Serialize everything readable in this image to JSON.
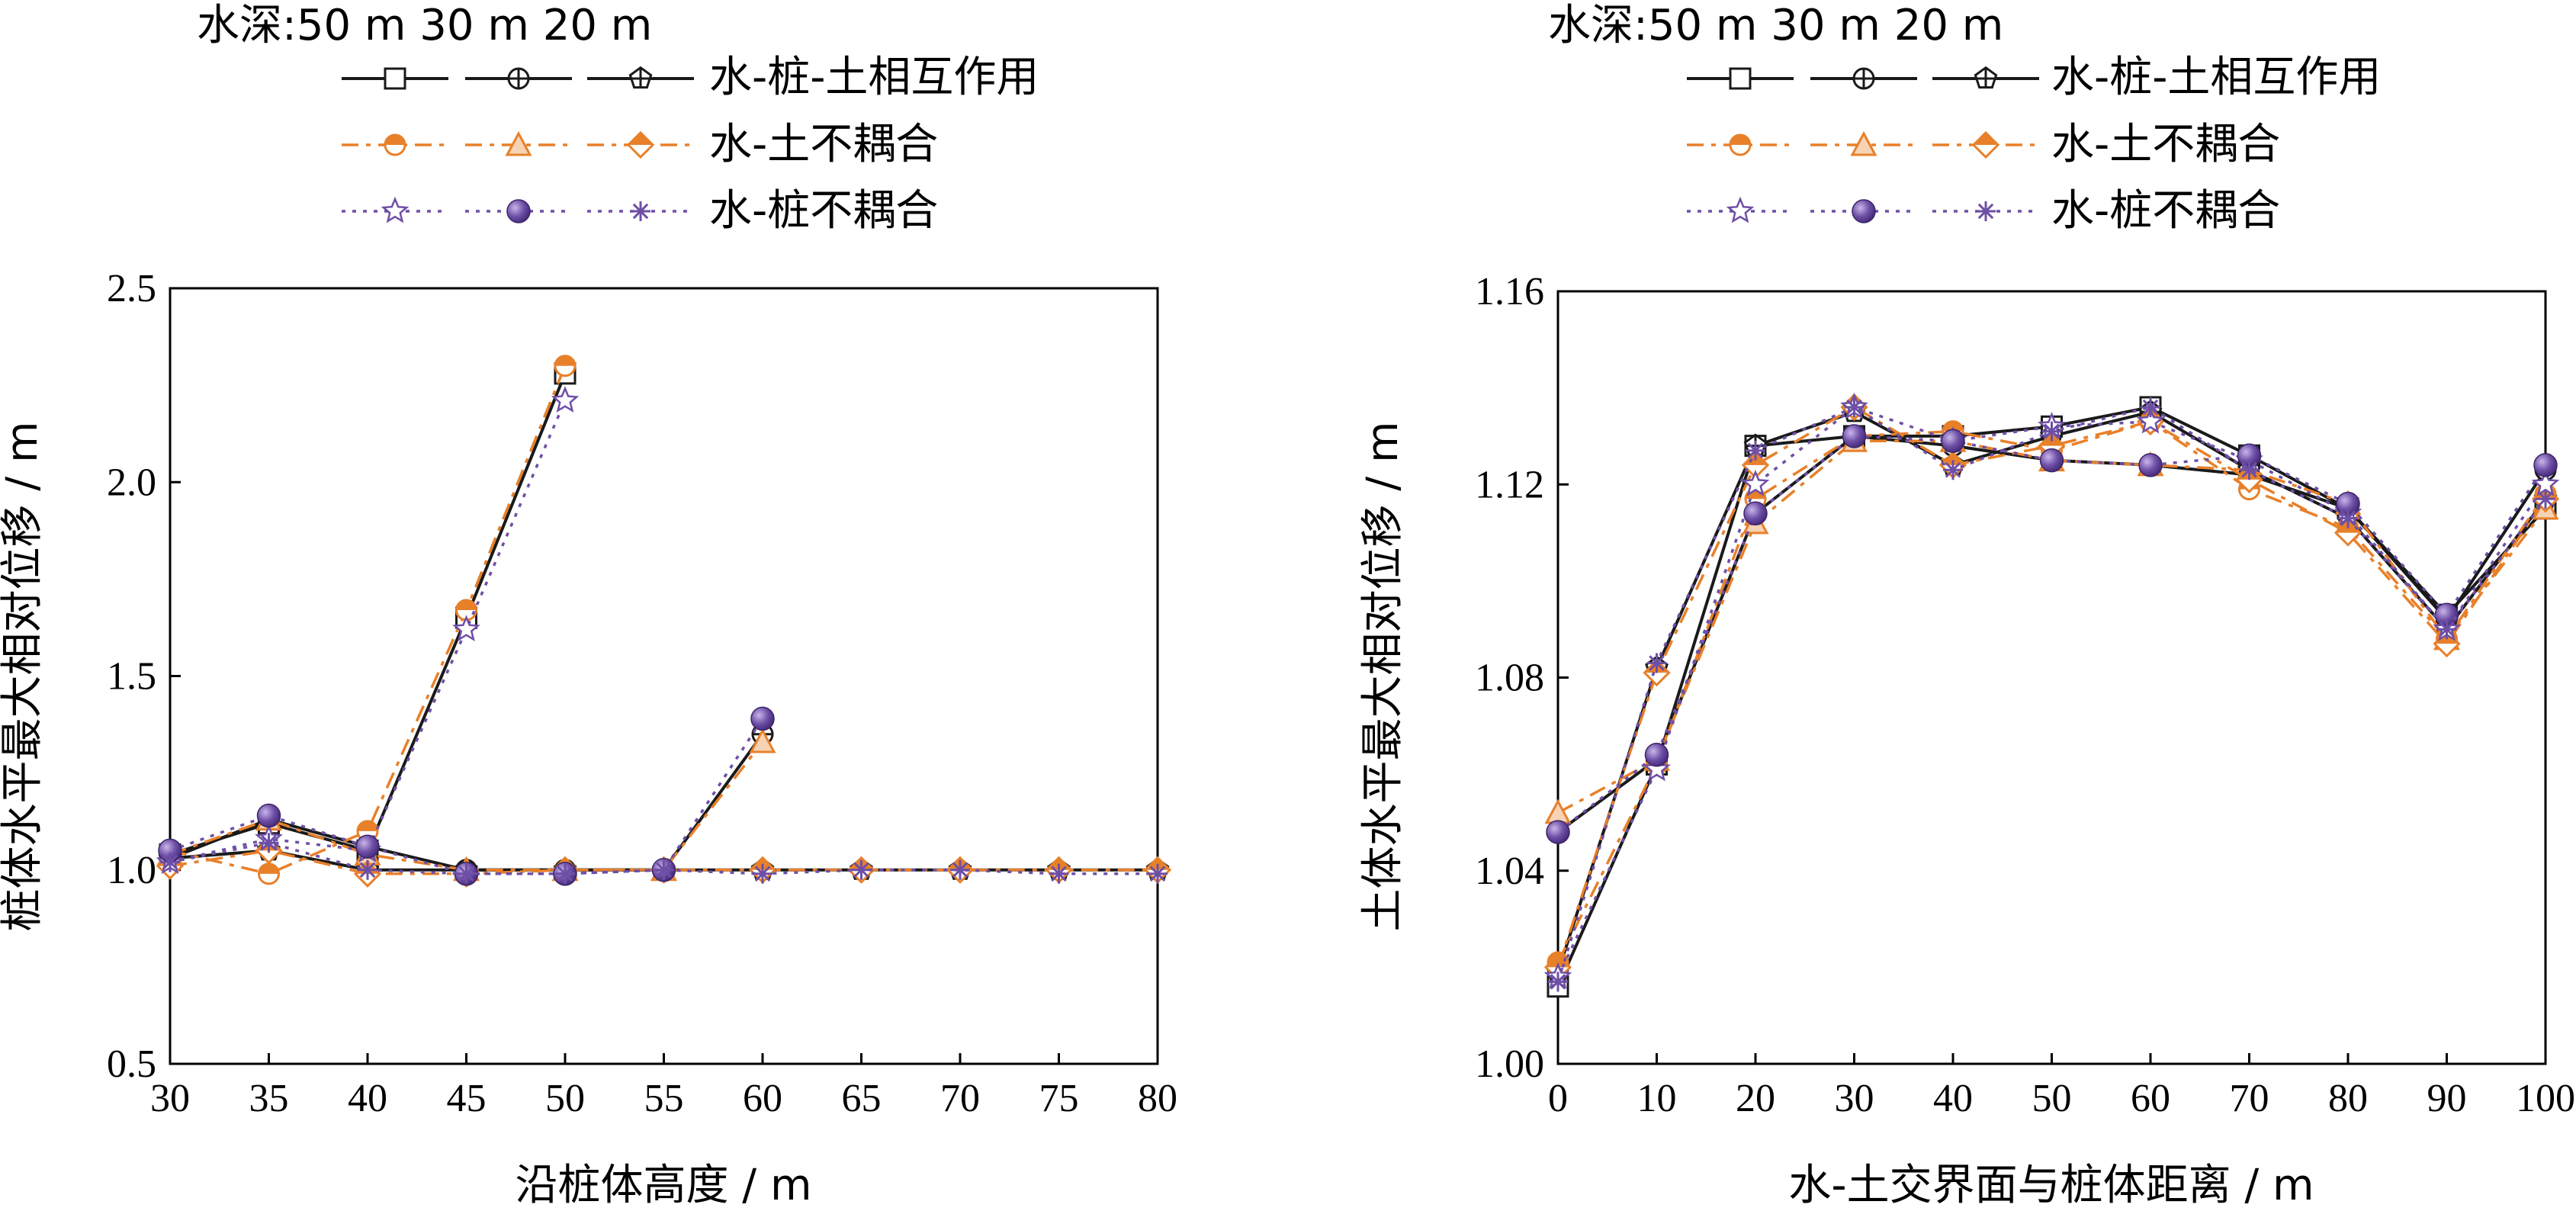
{
  "chart_data": [
    {
      "type": "line",
      "ylabel": "桩体水平最大相对位移 / m",
      "xlabel": "沿桩体高度 / m",
      "xlim": [
        30,
        80
      ],
      "ylim": [
        0.5,
        2.5
      ],
      "xticks": [
        "30",
        "35",
        "40",
        "45",
        "50",
        "55",
        "60",
        "65",
        "70",
        "75",
        "80"
      ],
      "yticks": [
        "0.5",
        "1.0",
        "1.5",
        "2.0",
        "2.5"
      ],
      "legend_header": "水深:50 m  30 m   20 m",
      "legend_groups": [
        "水-桩-土相互作用",
        "水-土不耦合",
        "水-桩不耦合"
      ],
      "grid": false,
      "series": [
        {
          "group": 0,
          "depth": "50 m",
          "x": [
            30,
            35,
            40,
            45,
            50
          ],
          "y": [
            1.04,
            1.12,
            1.05,
            1.65,
            2.28
          ]
        },
        {
          "group": 0,
          "depth": "30 m",
          "x": [
            30,
            35,
            40,
            45,
            50,
            55,
            60
          ],
          "y": [
            1.03,
            1.13,
            1.06,
            1.0,
            1.0,
            1.0,
            1.35
          ]
        },
        {
          "group": 0,
          "depth": "20 m",
          "x": [
            30,
            35,
            40,
            45,
            50,
            55,
            60,
            65,
            70,
            75,
            80
          ],
          "y": [
            1.03,
            1.05,
            1.0,
            1.0,
            1.0,
            1.0,
            1.0,
            1.0,
            1.0,
            1.0,
            1.0
          ]
        },
        {
          "group": 1,
          "depth": "50 m",
          "x": [
            30,
            35,
            40,
            45,
            50
          ],
          "y": [
            1.05,
            0.99,
            1.1,
            1.67,
            2.3
          ]
        },
        {
          "group": 1,
          "depth": "30 m",
          "x": [
            30,
            35,
            40,
            45,
            50,
            55,
            60
          ],
          "y": [
            1.04,
            1.13,
            1.04,
            1.0,
            1.0,
            1.0,
            1.33
          ]
        },
        {
          "group": 1,
          "depth": "20 m",
          "x": [
            30,
            35,
            40,
            45,
            50,
            55,
            60,
            65,
            70,
            75,
            80
          ],
          "y": [
            1.01,
            1.05,
            0.99,
            0.99,
            1.0,
            1.0,
            1.0,
            1.0,
            1.0,
            1.0,
            1.0
          ]
        },
        {
          "group": 2,
          "depth": "50 m",
          "x": [
            30,
            35,
            40,
            45,
            50
          ],
          "y": [
            1.02,
            1.08,
            1.05,
            1.62,
            2.21
          ]
        },
        {
          "group": 2,
          "depth": "30 m",
          "x": [
            30,
            35,
            40,
            45,
            50,
            55,
            60
          ],
          "y": [
            1.05,
            1.14,
            1.06,
            0.99,
            0.99,
            1.0,
            1.39
          ]
        },
        {
          "group": 2,
          "depth": "20 m",
          "x": [
            30,
            35,
            40,
            45,
            50,
            55,
            60,
            65,
            70,
            75,
            80
          ],
          "y": [
            1.02,
            1.07,
            1.0,
            0.99,
            0.99,
            1.0,
            0.99,
            1.0,
            1.0,
            0.99,
            0.99
          ]
        }
      ]
    },
    {
      "type": "line",
      "ylabel": "土体水平最大相对位移 / m",
      "xlabel": "水-土交界面与桩体距离 / m",
      "xlim": [
        0,
        100
      ],
      "ylim": [
        1.0,
        1.16
      ],
      "xticks": [
        "0",
        "10",
        "20",
        "30",
        "40",
        "50",
        "60",
        "70",
        "80",
        "90",
        "100"
      ],
      "yticks": [
        "1.00",
        "1.04",
        "1.08",
        "1.12",
        "1.16"
      ],
      "legend_header": "水深:50 m  30 m   20 m",
      "legend_groups": [
        "水-桩-土相互作用",
        "水-土不耦合",
        "水-桩不耦合"
      ],
      "grid": false,
      "series": [
        {
          "group": 0,
          "depth": "50 m",
          "x": [
            0,
            10,
            20,
            30,
            40,
            50,
            60,
            70,
            80,
            90,
            100
          ],
          "y": [
            1.016,
            1.062,
            1.128,
            1.13,
            1.13,
            1.132,
            1.136,
            1.126,
            1.115,
            1.093,
            1.115
          ]
        },
        {
          "group": 0,
          "depth": "30 m",
          "x": [
            0,
            10,
            20,
            30,
            40,
            50,
            60,
            70,
            80,
            90,
            100
          ],
          "y": [
            1.048,
            1.063,
            1.114,
            1.13,
            1.128,
            1.125,
            1.124,
            1.122,
            1.115,
            1.092,
            1.123
          ]
        },
        {
          "group": 0,
          "depth": "20 m",
          "x": [
            0,
            10,
            20,
            30,
            40,
            50,
            60,
            70,
            80,
            90,
            100
          ],
          "y": [
            1.019,
            1.082,
            1.128,
            1.135,
            1.124,
            1.13,
            1.135,
            1.123,
            1.113,
            1.09,
            1.117
          ]
        },
        {
          "group": 1,
          "depth": "50 m",
          "x": [
            0,
            10,
            20,
            30,
            40,
            50,
            60,
            70,
            80,
            90,
            100
          ],
          "y": [
            1.021,
            1.062,
            1.117,
            1.13,
            1.131,
            1.127,
            1.133,
            1.119,
            1.111,
            1.088,
            1.118
          ]
        },
        {
          "group": 1,
          "depth": "30 m",
          "x": [
            0,
            10,
            20,
            30,
            40,
            50,
            60,
            70,
            80,
            90,
            100
          ],
          "y": [
            1.052,
            1.063,
            1.112,
            1.129,
            1.129,
            1.125,
            1.124,
            1.123,
            1.116,
            1.088,
            1.115
          ]
        },
        {
          "group": 1,
          "depth": "20 m",
          "x": [
            0,
            10,
            20,
            30,
            40,
            50,
            60,
            70,
            80,
            90,
            100
          ],
          "y": [
            1.02,
            1.081,
            1.124,
            1.136,
            1.124,
            1.128,
            1.133,
            1.121,
            1.11,
            1.087,
            1.117
          ]
        },
        {
          "group": 2,
          "depth": "50 m",
          "x": [
            0,
            10,
            20,
            30,
            40,
            50,
            60,
            70,
            80,
            90,
            100
          ],
          "y": [
            1.018,
            1.061,
            1.12,
            1.136,
            1.129,
            1.132,
            1.133,
            1.125,
            1.114,
            1.09,
            1.12
          ]
        },
        {
          "group": 2,
          "depth": "30 m",
          "x": [
            0,
            10,
            20,
            30,
            40,
            50,
            60,
            70,
            80,
            90,
            100
          ],
          "y": [
            1.048,
            1.064,
            1.114,
            1.13,
            1.129,
            1.125,
            1.124,
            1.126,
            1.116,
            1.093,
            1.124
          ]
        },
        {
          "group": 2,
          "depth": "20 m",
          "x": [
            0,
            10,
            20,
            30,
            40,
            50,
            60,
            70,
            80,
            90,
            100
          ],
          "y": [
            1.017,
            1.083,
            1.127,
            1.136,
            1.123,
            1.131,
            1.136,
            1.123,
            1.113,
            1.09,
            1.117
          ]
        }
      ]
    }
  ],
  "colors": {
    "interaction": "#1a1a1a",
    "soil_uncoupled": "#e8802a",
    "pile_uncoupled": "#6e4fa6"
  },
  "markers": [
    "square",
    "circle-plus",
    "pentagon-plus",
    "half-circle",
    "triangle",
    "half-diamond",
    "star",
    "filled-circle",
    "asterisk"
  ]
}
